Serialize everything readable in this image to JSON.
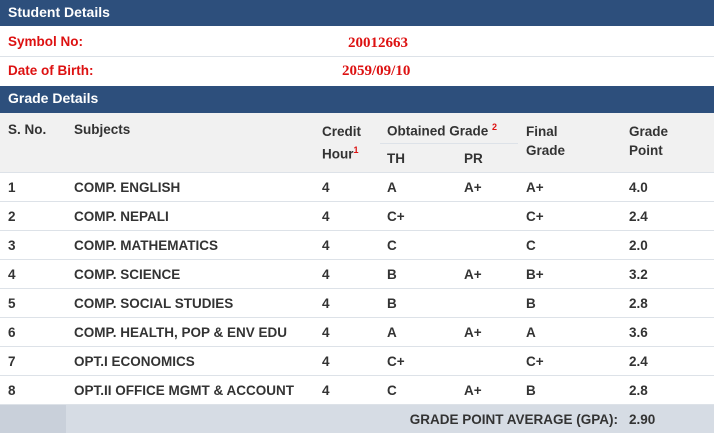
{
  "student_details": {
    "title": "Student Details",
    "symbol_no": {
      "label": "Symbol No:",
      "value": "20012663"
    },
    "date_of_birth": {
      "label": "Date of Birth:",
      "value": "2059/09/10"
    }
  },
  "grade_details": {
    "title": "Grade Details",
    "header": {
      "sno": "S. No.",
      "subjects": "Subjects",
      "credit_hour": "Credit Hour",
      "credit_hour_note": "1",
      "obtained_grade": "Obtained Grade",
      "obtained_grade_note": "2",
      "th": "TH",
      "pr": "PR",
      "final_grade": "Final Grade",
      "grade_point": "Grade Point"
    },
    "rows": [
      [
        "1",
        "COMP. ENGLISH",
        "4",
        "A",
        "A+",
        "A+",
        "4.0"
      ],
      [
        "2",
        "COMP. NEPALI",
        "4",
        "C+",
        null,
        "C+",
        "2.4"
      ],
      [
        "3",
        "COMP. MATHEMATICS",
        "4",
        "C",
        null,
        "C",
        "2.0"
      ],
      [
        "4",
        "COMP. SCIENCE",
        "4",
        "B",
        "A+",
        "B+",
        "3.2"
      ],
      [
        "5",
        "COMP. SOCIAL STUDIES",
        "4",
        "B",
        null,
        "B",
        "2.8"
      ],
      [
        "6",
        "COMP. HEALTH, POP & ENV EDU",
        "4",
        "A",
        "A+",
        "A",
        "3.6"
      ],
      [
        "7",
        "OPT.I ECONOMICS",
        "4",
        "C+",
        null,
        "C+",
        "2.4"
      ],
      [
        "8",
        "OPT.II OFFICE MGMT & ACCOUNT",
        "4",
        "C",
        "A+",
        "B",
        "2.8"
      ]
    ],
    "gpa": {
      "label": "GRADE POINT AVERAGE (GPA):",
      "value": "2.90"
    }
  }
}
